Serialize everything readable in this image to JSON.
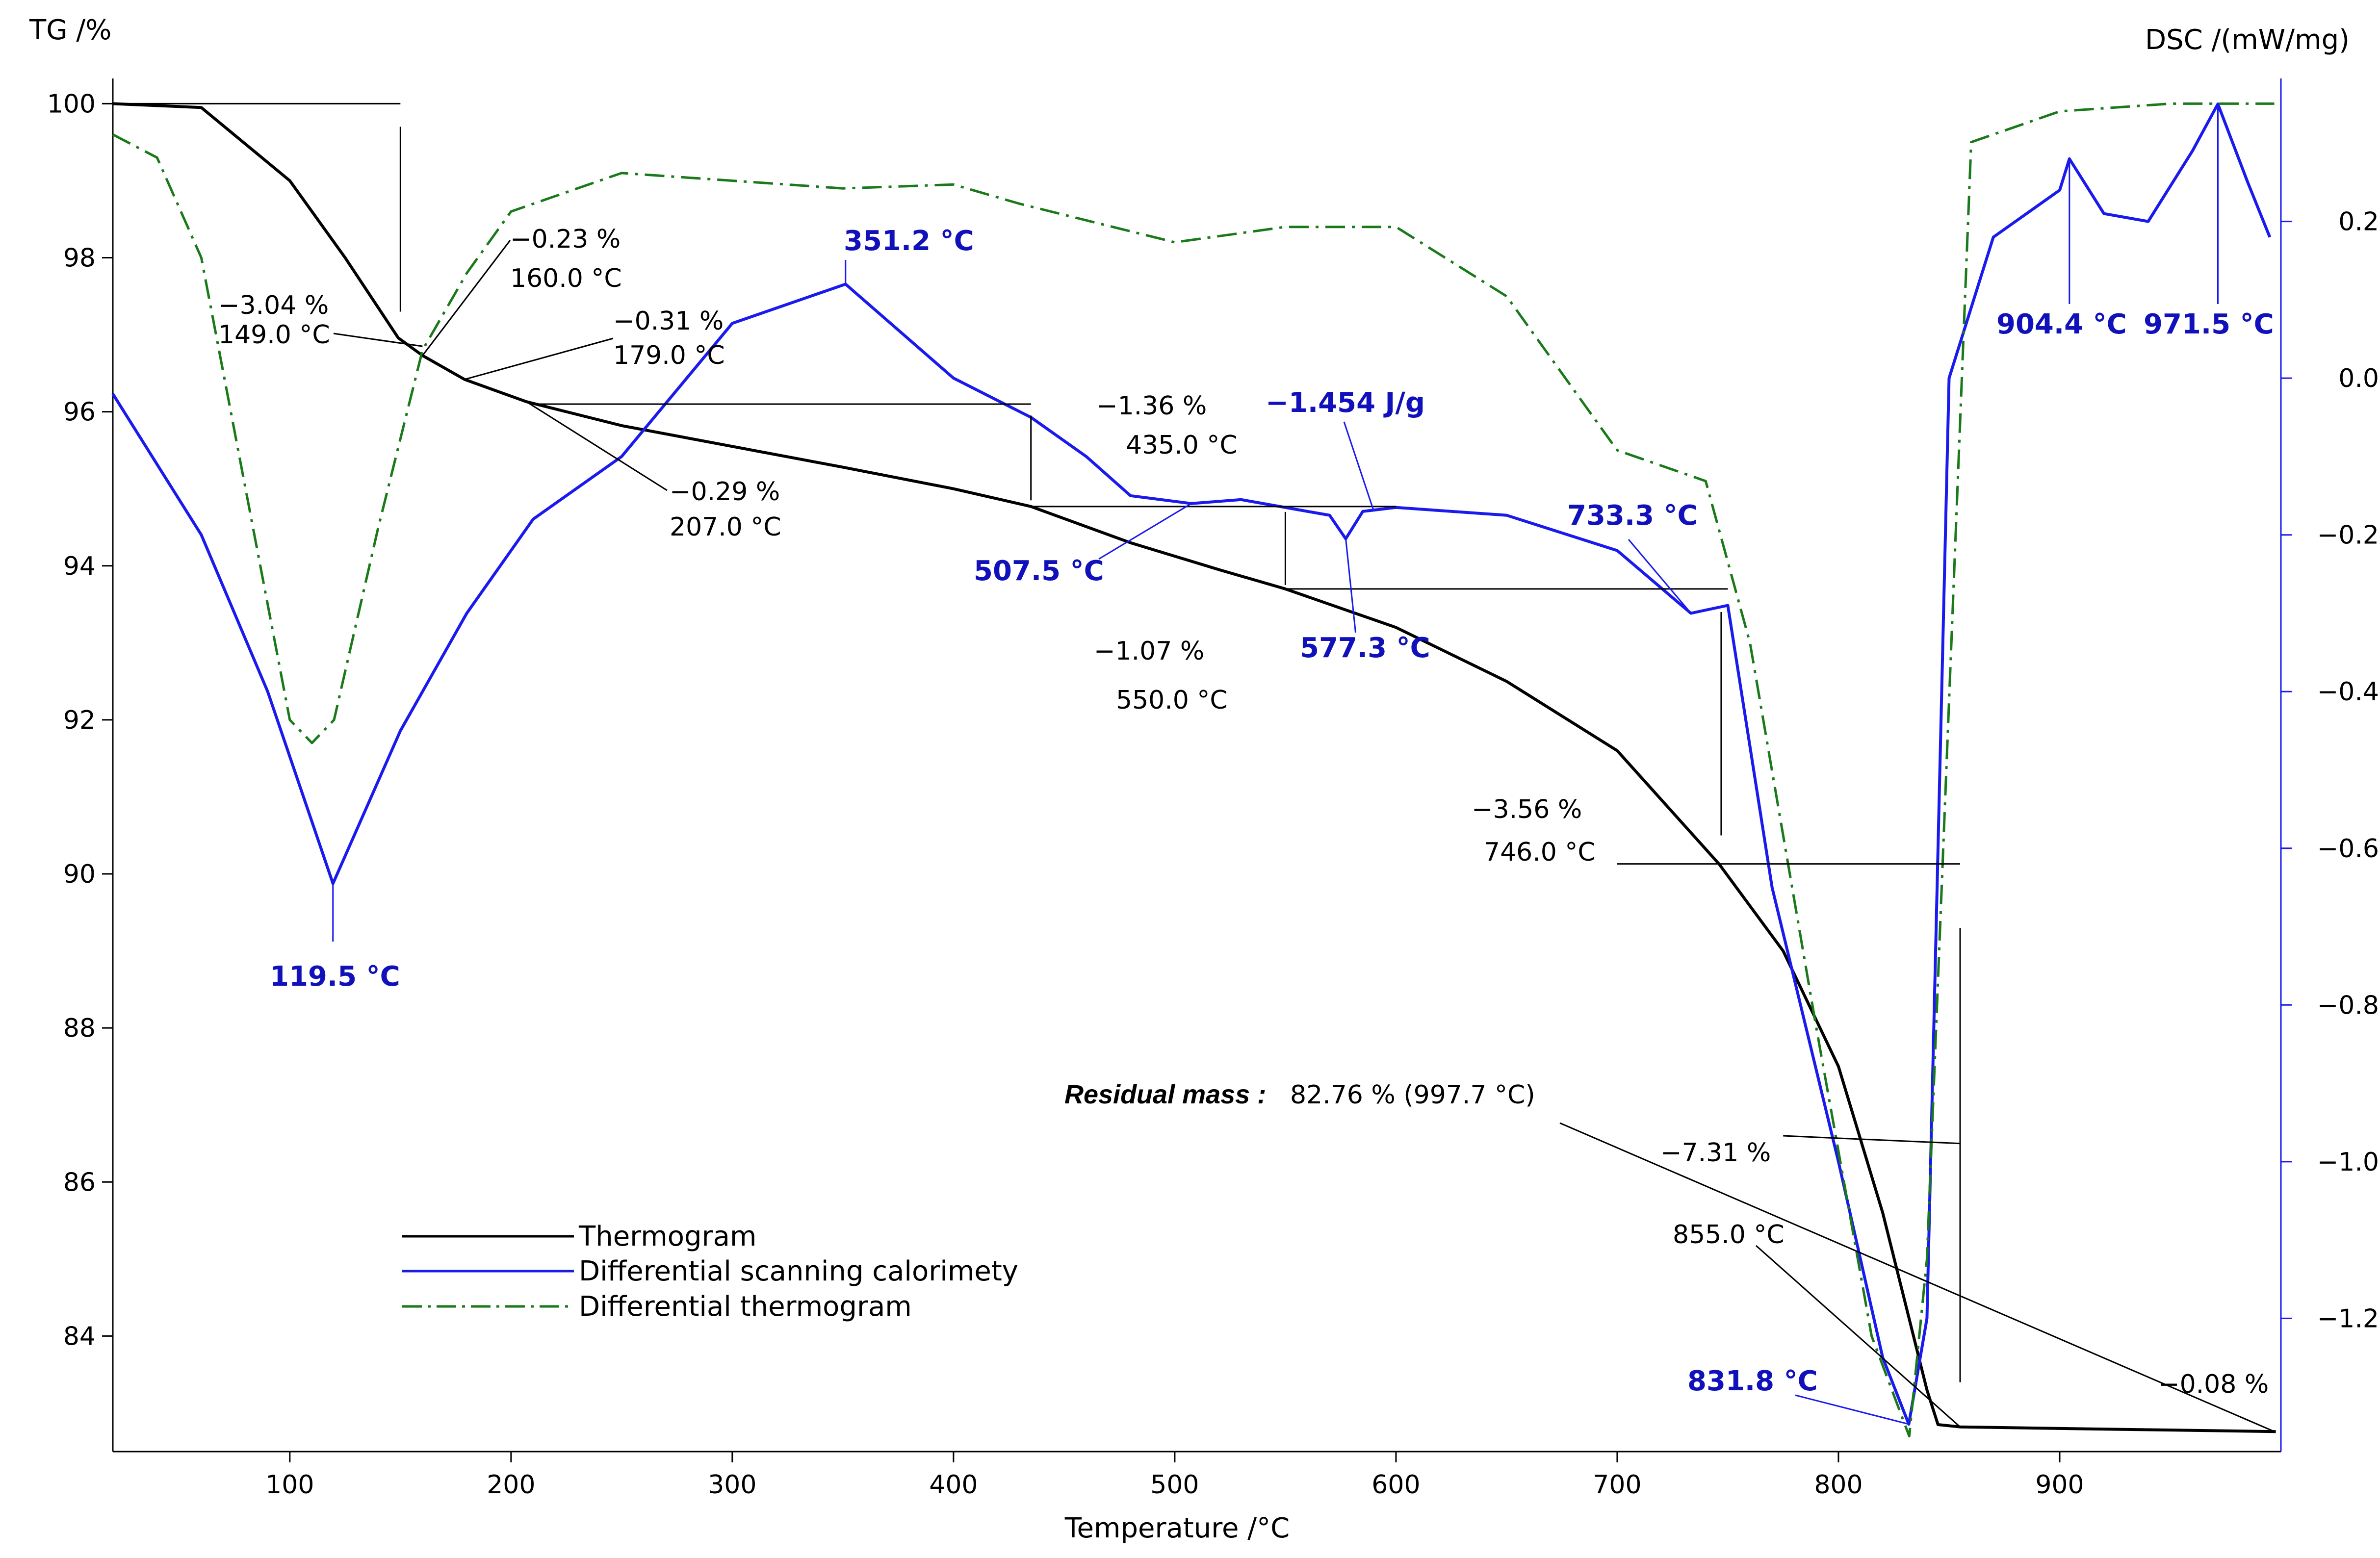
{
  "chart_data": {
    "type": "line",
    "title": "",
    "xlabel": "Temperature /°C",
    "ylabel_left": "TG /%",
    "ylabel_right": "DSC /(mW/mg)",
    "xlim": [
      20,
      1000
    ],
    "ylim_left": [
      82.5,
      100.2
    ],
    "ylim_right": [
      -1.37,
      0.37
    ],
    "x_ticks": [
      "100",
      "200",
      "300",
      "400",
      "500",
      "600",
      "700",
      "800",
      "900"
    ],
    "y_left_ticks": [
      "84",
      "86",
      "88",
      "90",
      "92",
      "94",
      "96",
      "98",
      "100"
    ],
    "y_right_ticks": [
      "−1.2",
      "−1.0",
      "−0.8",
      "−0.6",
      "−0.4",
      "−0.2",
      "0.0",
      "0.2"
    ],
    "legend": {
      "position": "bottom-left",
      "entries": [
        "Thermogram",
        "Differential scanning calorimety",
        "Differential thermogram"
      ]
    },
    "colors": {
      "tg": "#000000",
      "dsc": "#1a1aee",
      "dtg": "#1a7a1a",
      "blue_text": "#1111bb"
    },
    "series": [
      {
        "name": "Thermogram",
        "axis": "left",
        "x": [
          20,
          60,
          100,
          125,
          149,
          160,
          179,
          207,
          250,
          300,
          350,
          400,
          435,
          480,
          520,
          550,
          600,
          650,
          700,
          746,
          775,
          800,
          820,
          840,
          845,
          855,
          900,
          997.7
        ],
        "values": [
          100,
          99.95,
          99.0,
          98.0,
          96.96,
          96.73,
          96.42,
          96.13,
          95.82,
          95.55,
          95.28,
          95.0,
          94.77,
          94.3,
          93.95,
          93.7,
          93.2,
          92.5,
          91.6,
          90.13,
          89.0,
          87.5,
          85.6,
          83.3,
          82.85,
          82.82,
          82.8,
          82.76
        ]
      },
      {
        "name": "Differential scanning calorimety",
        "axis": "right",
        "x": [
          20,
          60,
          90,
          119.5,
          150,
          180,
          210,
          250,
          300,
          351.2,
          400,
          435,
          460,
          480,
          507.5,
          530,
          560,
          570,
          577.3,
          585,
          600,
          650,
          700,
          733.3,
          750,
          770,
          800,
          820,
          831.8,
          840,
          850,
          870,
          900,
          904.4,
          920,
          940,
          960,
          971.5,
          985,
          995
        ],
        "values": [
          -0.02,
          -0.2,
          -0.4,
          -0.645,
          -0.45,
          -0.3,
          -0.18,
          -0.1,
          0.07,
          0.12,
          0.0,
          -0.05,
          -0.1,
          -0.15,
          -0.16,
          -0.155,
          -0.17,
          -0.175,
          -0.205,
          -0.17,
          -0.165,
          -0.175,
          -0.22,
          -0.3,
          -0.29,
          -0.65,
          -1.0,
          -1.25,
          -1.335,
          -1.2,
          0.0,
          0.18,
          0.24,
          0.28,
          0.21,
          0.2,
          0.29,
          0.35,
          0.25,
          0.18
        ]
      },
      {
        "name": "Differential thermogram",
        "axis": "left",
        "x": [
          20,
          40,
          60,
          80,
          100,
          110,
          120,
          140,
          160,
          180,
          200,
          250,
          300,
          350,
          400,
          430,
          500,
          550,
          600,
          650,
          700,
          740,
          760,
          790,
          815,
          832,
          840,
          860,
          900,
          950,
          997
        ],
        "values": [
          99.6,
          99.3,
          98.0,
          95.0,
          92.0,
          91.7,
          92.0,
          94.5,
          96.8,
          97.8,
          98.6,
          99.1,
          99.0,
          98.9,
          98.95,
          98.7,
          98.2,
          98.4,
          98.4,
          97.5,
          95.5,
          95.1,
          93.0,
          88.0,
          84.0,
          82.7,
          85.0,
          99.5,
          99.9,
          100.0,
          100.0
        ]
      }
    ],
    "annotations": {
      "tg_steps": [
        {
          "mass_change": "−3.04 %",
          "temp": "149.0 °C"
        },
        {
          "mass_change": "−0.23 %",
          "temp": "160.0 °C"
        },
        {
          "mass_change": "−0.31 %",
          "temp": "179.0 °C"
        },
        {
          "mass_change": "−0.29 %",
          "temp": "207.0 °C"
        },
        {
          "mass_change": "−1.36 %",
          "temp": "435.0 °C"
        },
        {
          "mass_change": "−1.07 %",
          "temp": "550.0 °C"
        },
        {
          "mass_change": "−3.56 %",
          "temp": "746.0 °C"
        },
        {
          "mass_change": "−7.31 %",
          "temp": "855.0 °C"
        },
        {
          "mass_change": "−0.08 %",
          "temp": ""
        }
      ],
      "dsc_peaks": [
        "119.5 °C",
        "351.2 °C",
        "507.5 °C",
        "−1.454 J/g",
        "577.3 °C",
        "733.3 °C",
        "831.8 °C",
        "904.4 °C",
        "971.5 °C"
      ],
      "residual_mass_label": "Residual mass :",
      "residual_mass_value": "82.76 % (997.7 °C)"
    }
  }
}
